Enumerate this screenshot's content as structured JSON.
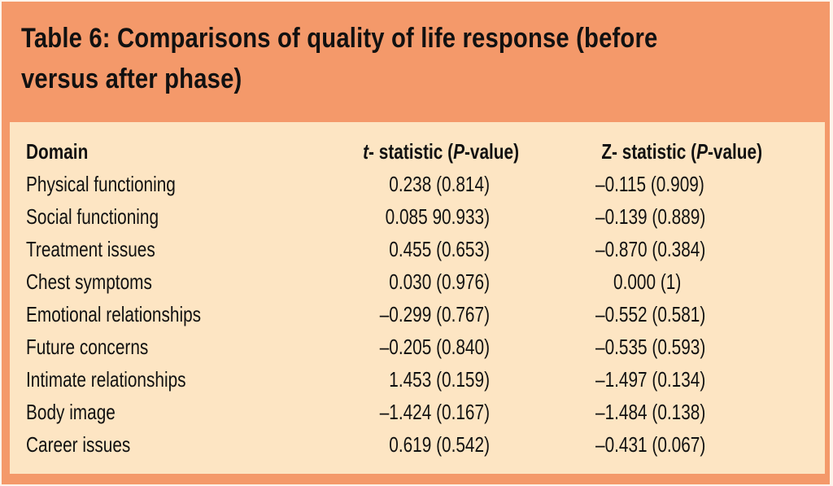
{
  "title": "Table 6: Comparisons of quality of life response (before versus after phase)",
  "colors": {
    "frame": "#f4996a",
    "body": "#fde5c3",
    "text": "#111111"
  },
  "table": {
    "headers": {
      "domain": "Domain",
      "t_prefix": "t",
      "t_mid": "- statistic (",
      "p1": "P",
      "t_suffix": "-value)",
      "z_mid": "Z- statistic (",
      "p2": "P",
      "z_suffix": "-value)"
    },
    "rows": [
      {
        "domain": "Physical functioning",
        "t": "0.238 (0.814)",
        "z": "–0.115 (0.909)"
      },
      {
        "domain": "Social functioning",
        "t": "0.085 90.933)",
        "z": "–0.139 (0.889)"
      },
      {
        "domain": "Treatment issues",
        "t": "0.455 (0.653)",
        "z": "–0.870 (0.384)"
      },
      {
        "domain": "Chest symptoms",
        "t": "0.030 (0.976)",
        "z": "0.000 (1)"
      },
      {
        "domain": "Emotional relationships",
        "t": "–0.299 (0.767)",
        "z": "–0.552 (0.581)"
      },
      {
        "domain": "Future concerns",
        "t": "–0.205 (0.840)",
        "z": "–0.535 (0.593)"
      },
      {
        "domain": "Intimate relationships",
        "t": "1.453 (0.159)",
        "z": "–1.497 (0.134)"
      },
      {
        "domain": "Body image",
        "t": "–1.424 (0.167)",
        "z": "–1.484 (0.138)"
      },
      {
        "domain": "Career issues",
        "t": "0.619 (0.542)",
        "z": "–0.431 (0.067)"
      }
    ]
  }
}
